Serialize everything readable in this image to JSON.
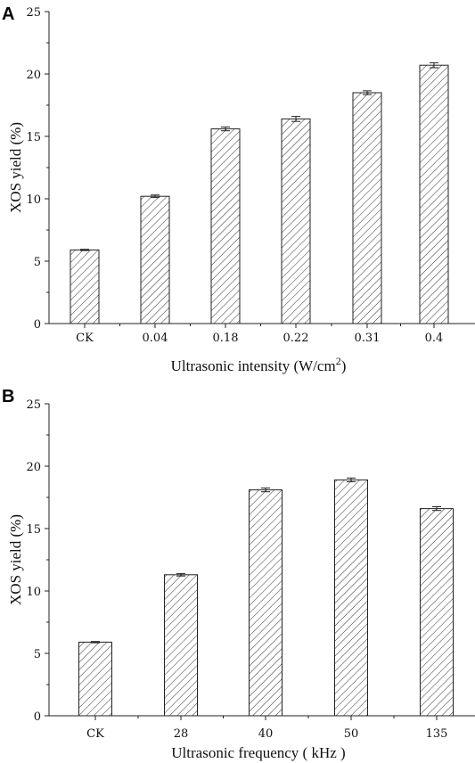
{
  "chart_data": [
    {
      "panel": "A",
      "type": "bar",
      "categories": [
        "CK",
        "0.04",
        "0.18",
        "0.22",
        "0.31",
        "0.4"
      ],
      "values": [
        5.9,
        10.2,
        15.6,
        16.4,
        18.5,
        20.7
      ],
      "errors": [
        0.05,
        0.1,
        0.15,
        0.2,
        0.15,
        0.2
      ],
      "xlabel_main": "Ultrasonic intensity (W/cm",
      "xlabel_sup": "2",
      "xlabel_end": ")",
      "ylabel": "XOS yield (%)",
      "ylim": [
        0,
        25
      ],
      "yticks": [
        "0",
        "5",
        "10",
        "15",
        "20",
        "25"
      ],
      "pattern": "diagonal hatch"
    },
    {
      "panel": "B",
      "type": "bar",
      "categories": [
        "CK",
        "28",
        "40",
        "50",
        "135"
      ],
      "values": [
        5.9,
        11.3,
        18.1,
        18.9,
        16.6
      ],
      "errors": [
        0.05,
        0.1,
        0.15,
        0.15,
        0.15
      ],
      "xlabel_main": "Ultrasonic frequency ( kHz )",
      "ylabel": "XOS yield (%)",
      "ylim": [
        0,
        25
      ],
      "yticks": [
        "0",
        "5",
        "10",
        "15",
        "20",
        "25"
      ],
      "pattern": "diagonal hatch"
    }
  ]
}
